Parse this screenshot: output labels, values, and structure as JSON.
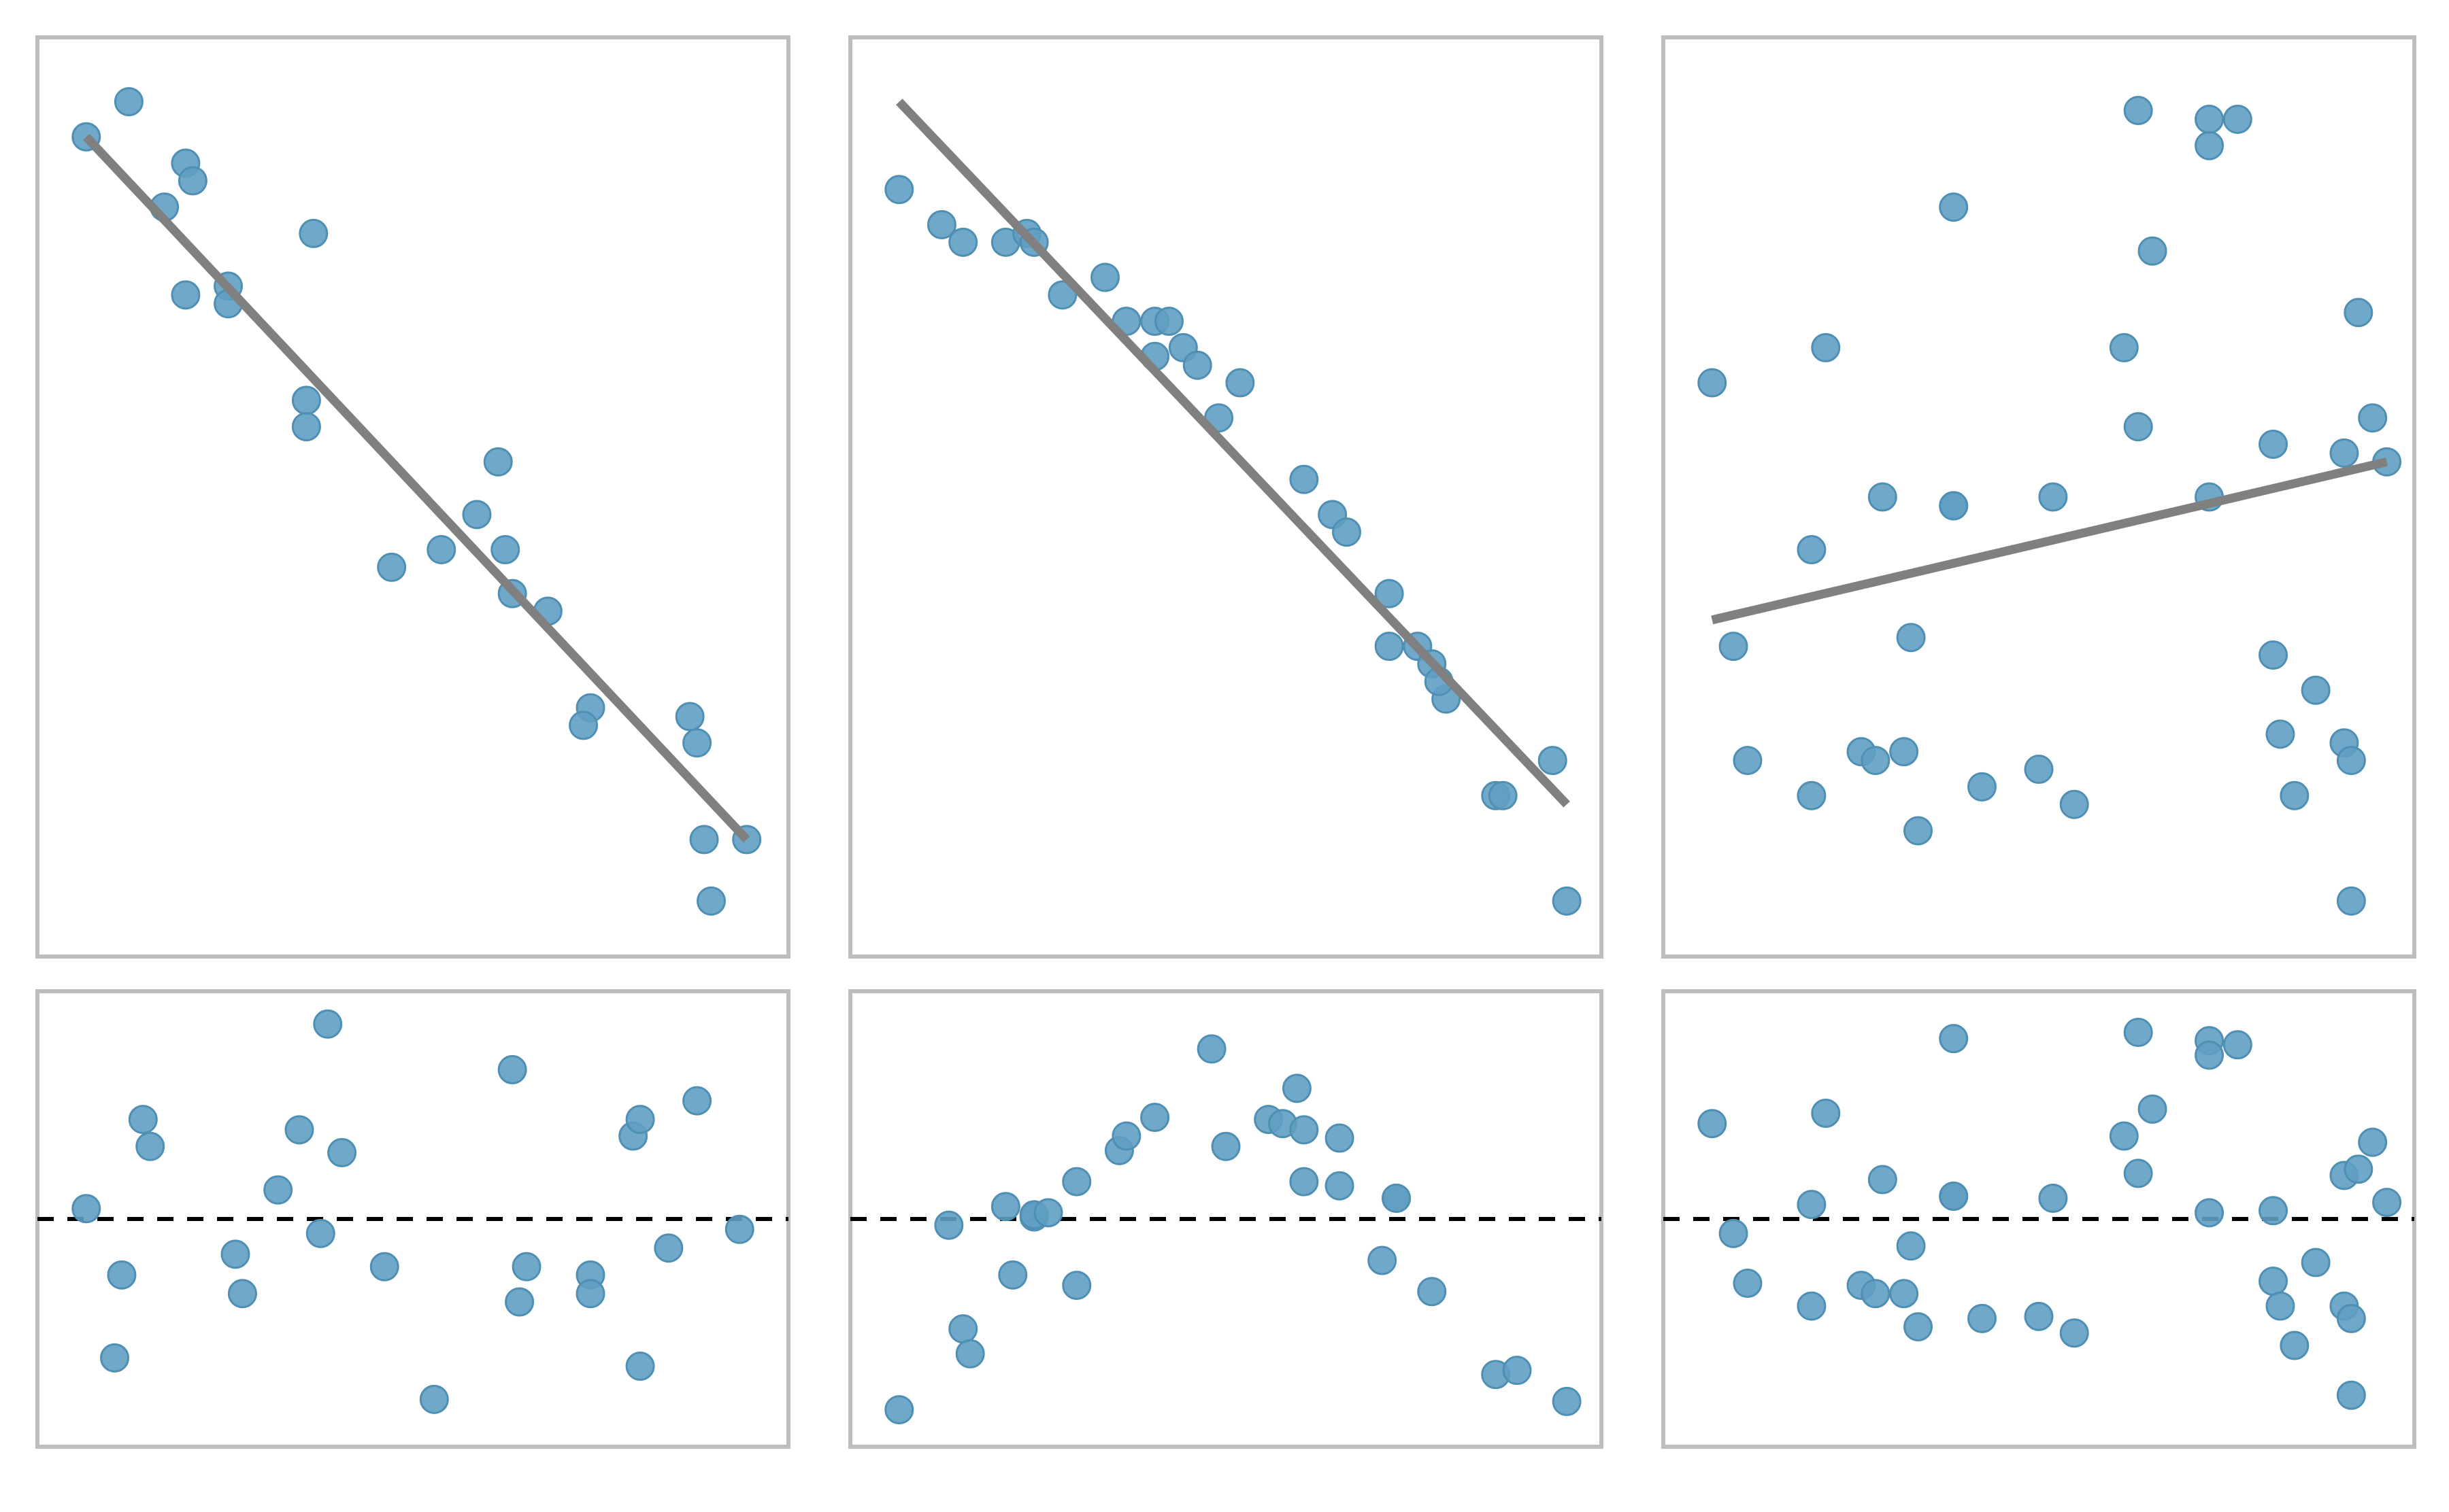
{
  "colors": {
    "points": "#5f9fc2",
    "fit_line": "#808080",
    "frame": "#bdbdbd",
    "zero_line": "#000000"
  },
  "chart_data": [
    {
      "type": "scatter",
      "panel": "top-left",
      "title": "",
      "xlabel": "",
      "ylabel": "",
      "xlim": [
        0,
        10
      ],
      "ylim": [
        0,
        10
      ],
      "show_ticks": false,
      "grid": false,
      "points": [
        [
          0.4,
          9.1
        ],
        [
          1.0,
          9.5
        ],
        [
          1.5,
          8.3
        ],
        [
          1.8,
          8.8
        ],
        [
          1.9,
          8.6
        ],
        [
          1.8,
          7.3
        ],
        [
          2.4,
          7.4
        ],
        [
          2.4,
          7.2
        ],
        [
          3.6,
          8.0
        ],
        [
          3.5,
          6.1
        ],
        [
          3.5,
          5.8
        ],
        [
          4.7,
          4.2
        ],
        [
          5.4,
          4.4
        ],
        [
          5.9,
          4.8
        ],
        [
          6.2,
          5.4
        ],
        [
          6.3,
          4.4
        ],
        [
          6.4,
          3.9
        ],
        [
          6.9,
          3.7
        ],
        [
          7.5,
          2.6
        ],
        [
          7.4,
          2.4
        ],
        [
          8.9,
          2.5
        ],
        [
          9.0,
          2.2
        ],
        [
          9.1,
          1.1
        ],
        [
          9.7,
          1.1
        ],
        [
          9.2,
          0.4
        ]
      ],
      "fit_line": {
        "x": [
          0.4,
          9.7
        ],
        "y": [
          9.1,
          1.1
        ]
      }
    },
    {
      "type": "scatter",
      "panel": "top-middle",
      "title": "",
      "xlabel": "",
      "ylabel": "",
      "xlim": [
        0,
        10
      ],
      "ylim": [
        0,
        10
      ],
      "show_ticks": false,
      "grid": false,
      "points": [
        [
          0.4,
          8.5
        ],
        [
          1.0,
          8.1
        ],
        [
          1.3,
          7.9
        ],
        [
          1.9,
          7.9
        ],
        [
          2.2,
          8.0
        ],
        [
          2.3,
          7.9
        ],
        [
          2.7,
          7.3
        ],
        [
          3.3,
          7.5
        ],
        [
          3.6,
          7.0
        ],
        [
          4.0,
          7.0
        ],
        [
          4.0,
          6.6
        ],
        [
          4.2,
          7.0
        ],
        [
          4.4,
          6.7
        ],
        [
          4.6,
          6.5
        ],
        [
          4.9,
          5.9
        ],
        [
          5.2,
          6.3
        ],
        [
          6.1,
          5.2
        ],
        [
          6.5,
          4.8
        ],
        [
          6.7,
          4.6
        ],
        [
          7.3,
          3.9
        ],
        [
          7.3,
          3.3
        ],
        [
          7.7,
          3.3
        ],
        [
          7.9,
          3.1
        ],
        [
          8.1,
          2.7
        ],
        [
          8.0,
          2.9
        ],
        [
          8.8,
          1.6
        ],
        [
          8.9,
          1.6
        ],
        [
          9.6,
          2.0
        ],
        [
          9.8,
          0.4
        ]
      ],
      "fit_line": {
        "x": [
          0.4,
          9.8
        ],
        "y": [
          9.5,
          1.5
        ]
      }
    },
    {
      "type": "scatter",
      "panel": "top-right",
      "title": "",
      "xlabel": "",
      "ylabel": "",
      "xlim": [
        0,
        10
      ],
      "ylim": [
        0,
        10
      ],
      "show_ticks": false,
      "grid": false,
      "points": [
        [
          0.4,
          6.3
        ],
        [
          2.0,
          6.7
        ],
        [
          3.8,
          8.3
        ],
        [
          6.4,
          9.4
        ],
        [
          6.6,
          7.8
        ],
        [
          7.4,
          9.3
        ],
        [
          7.4,
          9.0
        ],
        [
          7.8,
          9.3
        ],
        [
          6.2,
          6.7
        ],
        [
          6.4,
          5.8
        ],
        [
          8.3,
          5.6
        ],
        [
          9.7,
          5.9
        ],
        [
          9.9,
          5.4
        ],
        [
          9.3,
          5.5
        ],
        [
          9.5,
          7.1
        ],
        [
          1.8,
          4.4
        ],
        [
          2.8,
          5.0
        ],
        [
          3.8,
          4.9
        ],
        [
          3.8,
          4.9
        ],
        [
          5.2,
          5.0
        ],
        [
          7.4,
          5.0
        ],
        [
          0.7,
          3.3
        ],
        [
          3.2,
          3.4
        ],
        [
          8.3,
          3.2
        ],
        [
          8.9,
          2.8
        ],
        [
          8.4,
          2.3
        ],
        [
          9.3,
          2.2
        ],
        [
          9.4,
          2.0
        ],
        [
          0.9,
          2.0
        ],
        [
          2.5,
          2.1
        ],
        [
          2.7,
          2.0
        ],
        [
          3.1,
          2.1
        ],
        [
          4.2,
          1.7
        ],
        [
          1.8,
          1.6
        ],
        [
          5.0,
          1.9
        ],
        [
          5.5,
          1.5
        ],
        [
          3.3,
          1.2
        ],
        [
          8.6,
          1.6
        ],
        [
          9.4,
          0.4
        ]
      ],
      "fit_line": {
        "x": [
          0.4,
          9.9
        ],
        "y": [
          3.6,
          5.4
        ]
      }
    },
    {
      "type": "scatter",
      "panel": "bottom-left",
      "title": "",
      "xlabel": "",
      "ylabel": "",
      "xlim": [
        0,
        10
      ],
      "ylim": [
        -1,
        1
      ],
      "show_ticks": false,
      "grid": false,
      "zero_line": 0,
      "points": [
        [
          0.4,
          0.05
        ],
        [
          1.2,
          0.48
        ],
        [
          1.3,
          0.35
        ],
        [
          0.9,
          -0.27
        ],
        [
          0.8,
          -0.67
        ],
        [
          2.5,
          -0.17
        ],
        [
          2.6,
          -0.36
        ],
        [
          3.1,
          0.14
        ],
        [
          3.4,
          0.43
        ],
        [
          3.7,
          -0.07
        ],
        [
          3.8,
          0.94
        ],
        [
          4.0,
          0.32
        ],
        [
          4.6,
          -0.23
        ],
        [
          5.3,
          -0.87
        ],
        [
          6.4,
          0.72
        ],
        [
          6.5,
          -0.4
        ],
        [
          6.6,
          -0.23
        ],
        [
          7.5,
          -0.27
        ],
        [
          7.5,
          -0.36
        ],
        [
          8.1,
          0.4
        ],
        [
          8.2,
          0.48
        ],
        [
          8.2,
          -0.71
        ],
        [
          8.6,
          -0.14
        ],
        [
          9.0,
          0.57
        ],
        [
          9.6,
          -0.05
        ]
      ]
    },
    {
      "type": "scatter",
      "panel": "bottom-middle",
      "title": "",
      "xlabel": "",
      "ylabel": "",
      "xlim": [
        0,
        10
      ],
      "ylim": [
        -1,
        1
      ],
      "show_ticks": false,
      "grid": false,
      "zero_line": 0,
      "points": [
        [
          0.4,
          -0.92
        ],
        [
          1.1,
          -0.03
        ],
        [
          1.3,
          -0.53
        ],
        [
          1.4,
          -0.65
        ],
        [
          2.0,
          -0.27
        ],
        [
          1.9,
          0.06
        ],
        [
          2.3,
          0.01
        ],
        [
          2.3,
          0.02
        ],
        [
          2.5,
          0.03
        ],
        [
          2.9,
          -0.32
        ],
        [
          2.9,
          0.18
        ],
        [
          3.5,
          0.33
        ],
        [
          3.6,
          0.4
        ],
        [
          4.0,
          0.49
        ],
        [
          4.8,
          0.82
        ],
        [
          5.0,
          0.35
        ],
        [
          5.6,
          0.48
        ],
        [
          5.8,
          0.46
        ],
        [
          6.0,
          0.63
        ],
        [
          6.1,
          0.18
        ],
        [
          6.1,
          0.43
        ],
        [
          6.6,
          0.39
        ],
        [
          6.6,
          0.16
        ],
        [
          7.4,
          0.1
        ],
        [
          7.4,
          0.1
        ],
        [
          7.2,
          -0.2
        ],
        [
          7.9,
          -0.35
        ],
        [
          8.8,
          -0.75
        ],
        [
          9.1,
          -0.73
        ],
        [
          9.8,
          -0.88
        ]
      ]
    },
    {
      "type": "scatter",
      "panel": "bottom-right",
      "title": "",
      "xlabel": "",
      "ylabel": "",
      "xlim": [
        0,
        10
      ],
      "ylim": [
        -1,
        1
      ],
      "show_ticks": false,
      "grid": false,
      "zero_line": 0,
      "points": [
        [
          0.4,
          0.46
        ],
        [
          2.0,
          0.51
        ],
        [
          3.8,
          0.87
        ],
        [
          6.4,
          0.9
        ],
        [
          6.6,
          0.53
        ],
        [
          7.4,
          0.86
        ],
        [
          7.4,
          0.79
        ],
        [
          7.8,
          0.84
        ],
        [
          6.2,
          0.4
        ],
        [
          6.4,
          0.22
        ],
        [
          8.3,
          0.04
        ],
        [
          9.7,
          0.37
        ],
        [
          9.9,
          0.08
        ],
        [
          9.3,
          0.21
        ],
        [
          9.5,
          0.24
        ],
        [
          1.8,
          0.07
        ],
        [
          2.8,
          0.19
        ],
        [
          3.8,
          0.11
        ],
        [
          3.8,
          0.11
        ],
        [
          5.2,
          0.1
        ],
        [
          7.4,
          0.03
        ],
        [
          0.7,
          -0.07
        ],
        [
          3.2,
          -0.13
        ],
        [
          8.3,
          -0.3
        ],
        [
          8.9,
          -0.21
        ],
        [
          8.4,
          -0.42
        ],
        [
          9.3,
          -0.42
        ],
        [
          9.4,
          -0.48
        ],
        [
          0.9,
          -0.31
        ],
        [
          2.5,
          -0.32
        ],
        [
          2.7,
          -0.36
        ],
        [
          3.1,
          -0.36
        ],
        [
          4.2,
          -0.48
        ],
        [
          1.8,
          -0.42
        ],
        [
          5.0,
          -0.47
        ],
        [
          5.5,
          -0.55
        ],
        [
          3.3,
          -0.52
        ],
        [
          8.6,
          -0.61
        ],
        [
          9.4,
          -0.85
        ]
      ]
    }
  ]
}
